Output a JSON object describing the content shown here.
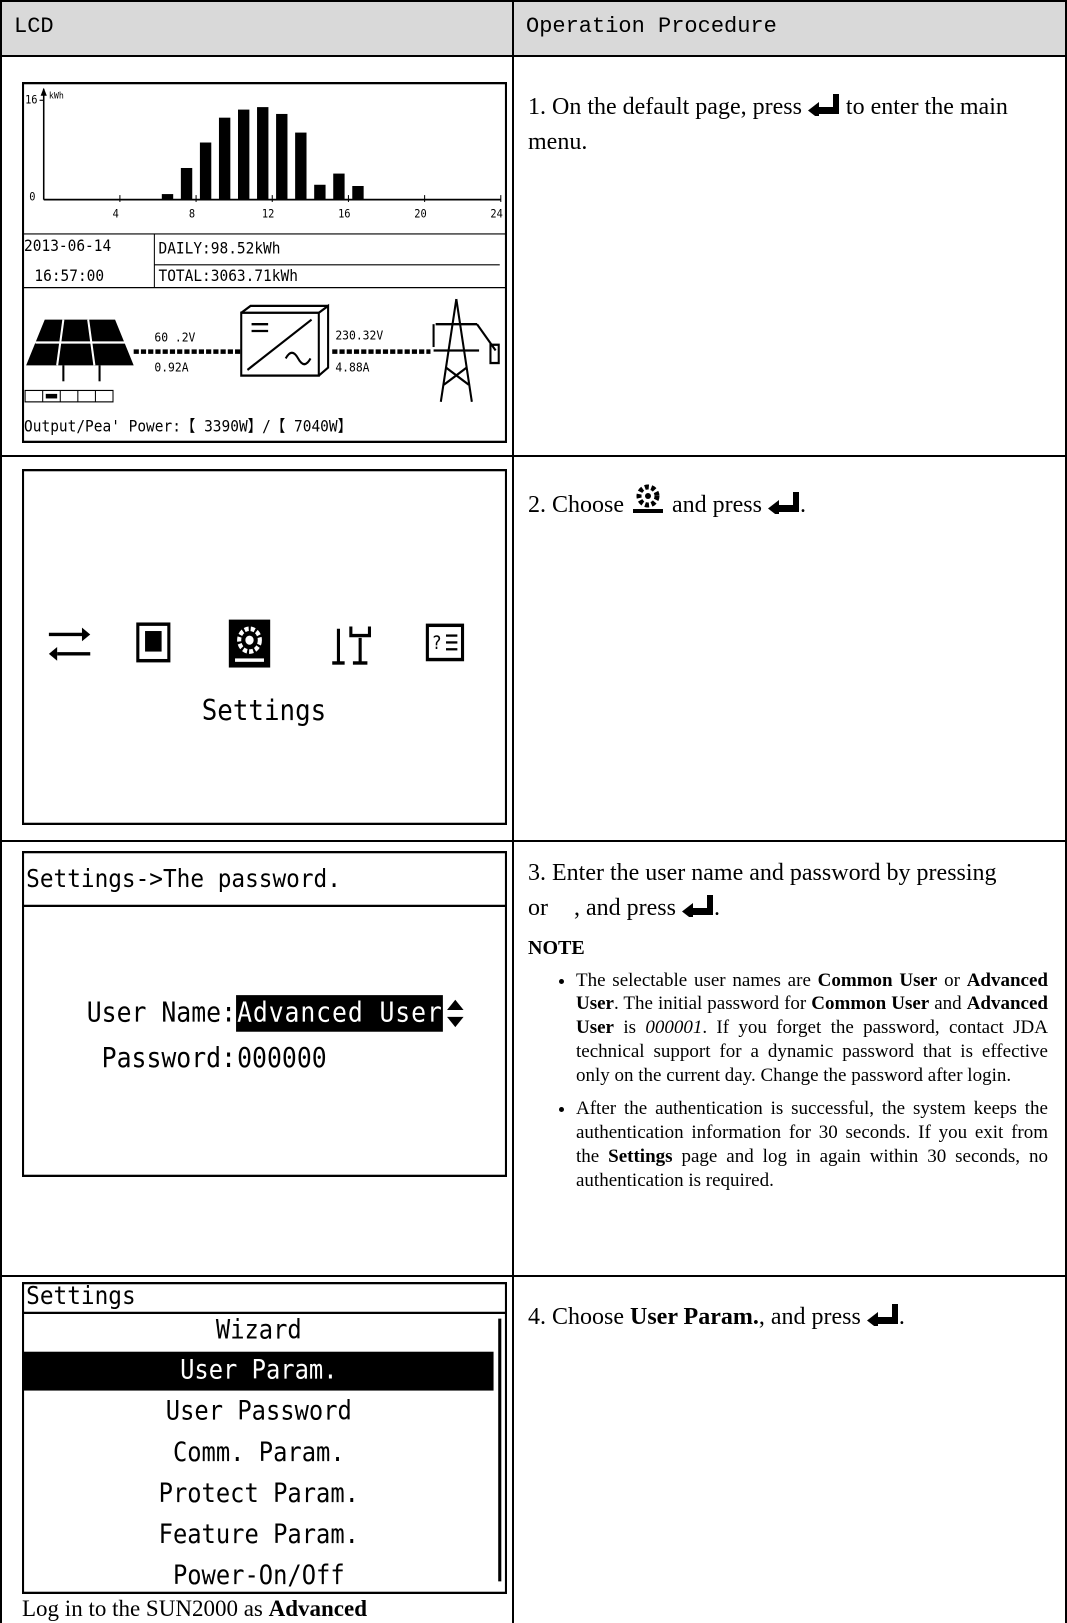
{
  "table": {
    "header": [
      "LCD",
      "Operation Procedure"
    ],
    "rows": [
      {
        "lcd": {
          "chart": {
            "y_unit": "kWh",
            "ylim": [
              0,
              16
            ],
            "xlim": [
              0,
              24
            ],
            "xticks": [
              4,
              8,
              12,
              16,
              20,
              24
            ],
            "bar_hours": [
              6.5,
              7.5,
              8.5,
              9.5,
              10.5,
              11.5,
              12.5,
              13.5,
              14.5,
              15.5,
              16.5
            ],
            "bars": [
              0.9,
              5.1,
              9.2,
              13.2,
              14.5,
              14.9,
              13.8,
              10.8,
              2.4,
              4.2,
              2.2
            ]
          },
          "date": "2013-06-14",
          "time": "16:57:00",
          "daily": "DAILY:98.52kWh",
          "total": "TOTAL:3063.71kWh",
          "pv_voltage": "60 .2V",
          "pv_current": "0.92A",
          "grid_voltage": "230.32V",
          "grid_current": "4.88A",
          "power": "Output/Pea' Power:【 3390W】/【 7040W】"
        },
        "procedure": [
          "1. On the default page, press ",
          " to enter the main menu."
        ]
      },
      {
        "lcd": {
          "label": "Settings"
        },
        "procedure": [
          "2. Choose ",
          " and press ",
          "."
        ]
      },
      {
        "lcd": {
          "title": "Settings->The password.",
          "user_name_label": "User Name:",
          "user_name": "Advanced User",
          "password_label": "Password:",
          "password": "000000"
        },
        "procedure": [
          "3. Enter the user name and password by pressing ",
          " or ",
          ", and press ",
          "."
        ],
        "note": {
          "heading": "NOTE",
          "bullets": [
            [
              "The selectable user names are ",
              {
                "text": "Common User",
                "bold": true
              },
              " or ",
              {
                "text": "Advanced User",
                "bold": true
              },
              ". The initial password for ",
              {
                "text": "Common User",
                "bold": true
              },
              " and ",
              {
                "text": "Advanced User",
                "bold": true
              },
              " is ",
              {
                "text": "000001",
                "italic": true
              },
              ". If you forget the password, contact JDA technical support for a dynamic password that is effective only on the current day. Change the password after login."
            ],
            [
              "After the authentication is successful, the system keeps the authentication information for 30 seconds. If you exit from the ",
              {
                "text": "Settings",
                "bold": true
              },
              " page and log in again within 30 seconds, no authentication is required."
            ]
          ]
        }
      },
      {
        "lcd": {
          "title": "Settings",
          "items": [
            "Wizard",
            "User Param.",
            "User Password",
            "Comm. Param.",
            "Protect Param.",
            "Feature Param.",
            "Power-On/Off"
          ],
          "selected": 1,
          "caption": [
            "Log in to the SUN2000 as ",
            {
              "text": "Advanced",
              "bold": true
            }
          ]
        },
        "procedure": [
          "4. Choose ",
          {
            "text": "User Param.",
            "bold": true
          },
          ", and press ",
          "."
        ]
      }
    ]
  }
}
